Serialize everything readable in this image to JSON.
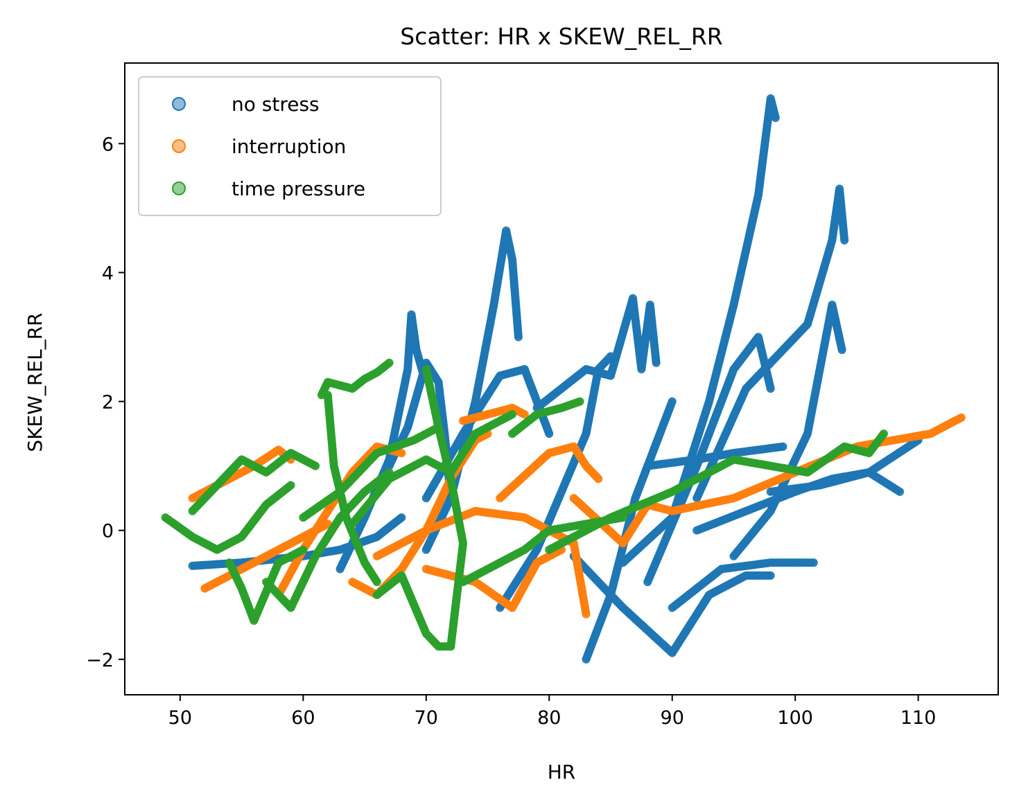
{
  "chart_data": {
    "type": "scatter",
    "title": "Scatter: HR x SKEW_REL_RR",
    "xlabel": "HR",
    "ylabel": "SKEW_REL_RR",
    "xlim": [
      45.5,
      116.5
    ],
    "ylim": [
      -2.55,
      7.25
    ],
    "xticks": [
      50,
      60,
      70,
      80,
      90,
      100,
      110
    ],
    "yticks": [
      -2,
      0,
      2,
      4,
      6
    ],
    "xtick_labels": [
      "50",
      "60",
      "70",
      "80",
      "90",
      "100",
      "110"
    ],
    "ytick_labels": [
      "−2",
      "0",
      "2",
      "4",
      "6"
    ],
    "grid": false,
    "legend_position": "upper-left",
    "series": [
      {
        "name": "no stress",
        "color": "#1f77b4",
        "traces": [
          [
            [
              51,
              -0.55
            ],
            [
              55,
              -0.5
            ],
            [
              60,
              -0.4
            ],
            [
              63,
              -0.3
            ],
            [
              66,
              -0.1
            ],
            [
              68,
              0.2
            ]
          ],
          [
            [
              63,
              -0.6
            ],
            [
              65,
              0.2
            ],
            [
              67,
              1.1
            ],
            [
              68.5,
              2.5
            ],
            [
              68.8,
              3.35
            ],
            [
              69.2,
              2.8
            ],
            [
              69.8,
              2.4
            ]
          ],
          [
            [
              70,
              -0.3
            ],
            [
              72,
              0.5
            ],
            [
              74,
              2.0
            ],
            [
              75.5,
              3.5
            ],
            [
              76.5,
              4.65
            ],
            [
              77,
              4.2
            ],
            [
              77.5,
              3.0
            ]
          ],
          [
            [
              67,
              1.0
            ],
            [
              68.5,
              1.6
            ],
            [
              70,
              2.6
            ],
            [
              71,
              2.3
            ],
            [
              71.5,
              1.5
            ],
            [
              72,
              0.5
            ]
          ],
          [
            [
              70,
              0.5
            ],
            [
              73,
              1.5
            ],
            [
              76,
              2.4
            ],
            [
              78,
              2.5
            ],
            [
              79,
              2.0
            ],
            [
              80,
              1.5
            ]
          ],
          [
            [
              76,
              -1.2
            ],
            [
              79,
              -0.3
            ],
            [
              81,
              0.6
            ],
            [
              83,
              1.5
            ],
            [
              84,
              2.5
            ],
            [
              85,
              2.7
            ]
          ],
          [
            [
              79,
              1.9
            ],
            [
              83,
              2.5
            ],
            [
              85,
              2.4
            ],
            [
              86.8,
              3.6
            ],
            [
              87.5,
              2.5
            ],
            [
              88.2,
              3.5
            ],
            [
              88.7,
              2.6
            ]
          ],
          [
            [
              83,
              -2.0
            ],
            [
              85,
              -1.0
            ],
            [
              87,
              0.5
            ],
            [
              89,
              1.5
            ],
            [
              90,
              2.0
            ]
          ],
          [
            [
              82,
              -0.4
            ],
            [
              86,
              -1.2
            ],
            [
              90,
              -1.9
            ],
            [
              93,
              -1.0
            ],
            [
              96,
              -0.7
            ],
            [
              98,
              -0.7
            ]
          ],
          [
            [
              86,
              -0.5
            ],
            [
              90,
              0.2
            ],
            [
              93,
              2.0
            ],
            [
              95,
              3.5
            ],
            [
              97,
              5.2
            ],
            [
              98,
              6.7
            ],
            [
              98.4,
              6.4
            ]
          ],
          [
            [
              88,
              -0.8
            ],
            [
              92,
              1.0
            ],
            [
              95,
              2.5
            ],
            [
              97,
              3.0
            ],
            [
              98,
              2.2
            ]
          ],
          [
            [
              90,
              -1.2
            ],
            [
              94,
              -0.6
            ],
            [
              98,
              -0.5
            ],
            [
              101.5,
              -0.5
            ]
          ],
          [
            [
              92,
              0.5
            ],
            [
              96,
              2.2
            ],
            [
              99,
              2.8
            ],
            [
              101,
              3.2
            ],
            [
              103,
              4.5
            ],
            [
              103.6,
              5.3
            ],
            [
              104,
              4.5
            ]
          ],
          [
            [
              95,
              -0.4
            ],
            [
              98,
              0.3
            ],
            [
              101,
              1.5
            ],
            [
              103,
              3.5
            ],
            [
              103.8,
              2.8
            ]
          ],
          [
            [
              88,
              1.0
            ],
            [
              92,
              1.1
            ],
            [
              95,
              1.2
            ],
            [
              99,
              1.3
            ]
          ],
          [
            [
              98,
              0.6
            ],
            [
              102,
              0.7
            ],
            [
              106,
              0.9
            ],
            [
              110,
              1.4
            ]
          ],
          [
            [
              92,
              0.0
            ],
            [
              96,
              0.3
            ],
            [
              100,
              0.6
            ],
            [
              103,
              0.8
            ],
            [
              106,
              0.9
            ],
            [
              108.5,
              0.6
            ]
          ]
        ]
      },
      {
        "name": "interruption",
        "color": "#ff7f0e",
        "traces": [
          [
            [
              51,
              0.5
            ],
            [
              53,
              0.7
            ],
            [
              56,
              1.0
            ],
            [
              58,
              1.25
            ],
            [
              59,
              1.1
            ]
          ],
          [
            [
              52,
              -0.9
            ],
            [
              55,
              -0.6
            ],
            [
              58,
              -0.3
            ],
            [
              62,
              0.1
            ]
          ],
          [
            [
              58,
              -1.0
            ],
            [
              60,
              -0.3
            ],
            [
              62,
              0.3
            ],
            [
              64,
              0.9
            ],
            [
              66,
              1.3
            ],
            [
              68,
              1.2
            ]
          ],
          [
            [
              64,
              -0.8
            ],
            [
              66,
              -1.0
            ],
            [
              68,
              -0.6
            ],
            [
              70,
              0.0
            ],
            [
              72,
              0.8
            ],
            [
              74,
              1.4
            ],
            [
              75,
              1.5
            ]
          ],
          [
            [
              73,
              1.7
            ],
            [
              75,
              1.8
            ],
            [
              77,
              1.9
            ],
            [
              78,
              1.8
            ]
          ],
          [
            [
              66,
              -0.4
            ],
            [
              70,
              0.0
            ],
            [
              74,
              0.3
            ],
            [
              78,
              0.2
            ],
            [
              82,
              -0.2
            ],
            [
              83,
              -1.3
            ]
          ],
          [
            [
              70,
              -0.6
            ],
            [
              74,
              -0.8
            ],
            [
              77,
              -1.2
            ],
            [
              79,
              -0.5
            ],
            [
              81,
              -0.3
            ]
          ],
          [
            [
              76,
              0.5
            ],
            [
              80,
              1.2
            ],
            [
              82,
              1.3
            ],
            [
              83,
              1.0
            ],
            [
              84,
              0.8
            ]
          ],
          [
            [
              82,
              0.5
            ],
            [
              86,
              -0.2
            ],
            [
              88,
              0.4
            ],
            [
              90,
              0.3
            ],
            [
              95,
              0.5
            ],
            [
              100,
              0.9
            ],
            [
              105,
              1.3
            ],
            [
              108,
              1.4
            ],
            [
              111,
              1.5
            ],
            [
              113.5,
              1.75
            ]
          ]
        ]
      },
      {
        "name": "time pressure",
        "color": "#2ca02c",
        "traces": [
          [
            [
              48.8,
              0.2
            ],
            [
              51,
              -0.1
            ],
            [
              53,
              -0.3
            ],
            [
              55,
              -0.1
            ],
            [
              57,
              0.4
            ],
            [
              59,
              0.7
            ]
          ],
          [
            [
              51,
              0.3
            ],
            [
              53,
              0.7
            ],
            [
              55,
              1.1
            ],
            [
              57,
              0.9
            ],
            [
              59,
              1.2
            ],
            [
              61,
              1.0
            ]
          ],
          [
            [
              54,
              -0.5
            ],
            [
              55,
              -0.9
            ],
            [
              56,
              -1.4
            ],
            [
              58,
              -0.5
            ],
            [
              60,
              -0.3
            ]
          ],
          [
            [
              57,
              -0.8
            ],
            [
              59,
              -1.2
            ],
            [
              61,
              -0.4
            ],
            [
              63,
              0.2
            ],
            [
              65,
              0.6
            ],
            [
              67,
              0.9
            ]
          ],
          [
            [
              61.5,
              2.1
            ],
            [
              62,
              2.3
            ],
            [
              64,
              2.2
            ],
            [
              65,
              2.35
            ],
            [
              66,
              2.45
            ],
            [
              67,
              2.6
            ]
          ],
          [
            [
              62,
              2.1
            ],
            [
              62.5,
              1.0
            ],
            [
              63.5,
              0.2
            ],
            [
              65,
              -0.5
            ],
            [
              66,
              -0.8
            ]
          ],
          [
            [
              60,
              0.2
            ],
            [
              63,
              0.6
            ],
            [
              66,
              1.2
            ],
            [
              69,
              1.4
            ],
            [
              71,
              1.6
            ]
          ],
          [
            [
              64,
              0.1
            ],
            [
              67,
              0.8
            ],
            [
              70,
              1.1
            ],
            [
              72,
              0.9
            ],
            [
              74,
              1.5
            ],
            [
              77,
              1.8
            ]
          ],
          [
            [
              70,
              2.5
            ],
            [
              71,
              1.6
            ],
            [
              72,
              0.8
            ],
            [
              73,
              -0.2
            ],
            [
              72,
              -1.8
            ]
          ],
          [
            [
              66,
              -1.0
            ],
            [
              68,
              -0.7
            ],
            [
              70,
              -1.6
            ],
            [
              71,
              -1.8
            ],
            [
              72,
              -1.8
            ]
          ],
          [
            [
              73,
              -0.8
            ],
            [
              76,
              -0.5
            ],
            [
              78,
              -0.3
            ],
            [
              80,
              0.0
            ],
            [
              83,
              0.1
            ],
            [
              86,
              0.2
            ]
          ],
          [
            [
              77,
              1.5
            ],
            [
              79,
              1.8
            ],
            [
              81,
              1.9
            ],
            [
              82.5,
              2.0
            ]
          ],
          [
            [
              80,
              -0.3
            ],
            [
              85,
              0.2
            ],
            [
              90,
              0.6
            ],
            [
              95,
              1.1
            ],
            [
              98,
              1.0
            ],
            [
              101,
              0.9
            ],
            [
              104,
              1.3
            ],
            [
              106,
              1.2
            ],
            [
              107.2,
              1.5
            ]
          ]
        ]
      }
    ]
  }
}
